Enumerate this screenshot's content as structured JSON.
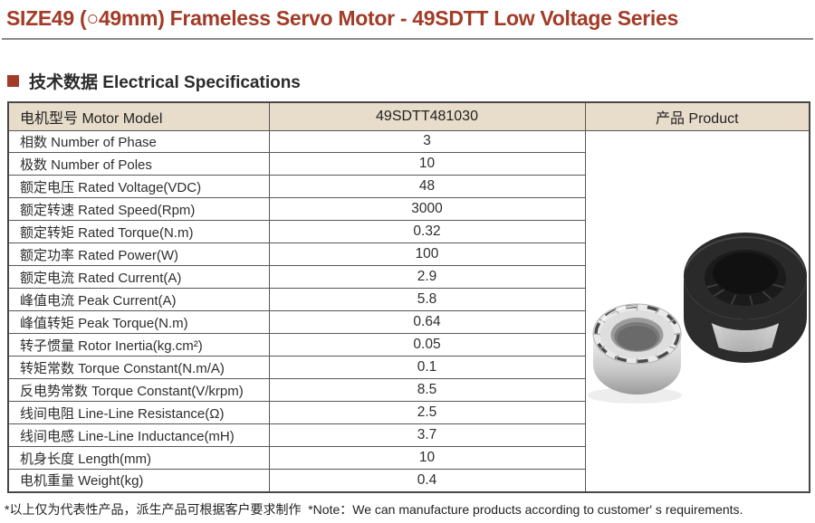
{
  "page": {
    "title": "SIZE49 (○49mm) Frameless Servo Motor - 49SDTT Low Voltage Series",
    "section_heading": "技术数据 Electrical Specifications",
    "footnote": "*以上仅为代表性产品，派生产品可根据客户要求制作  *Note：We can manufacture products according to customer' s requirements."
  },
  "colors": {
    "accent_red": "#a23b27",
    "table_header_bg": "#e8dcca",
    "table_border": "#585858",
    "rule_gray": "#8a8a8a",
    "stator_dark": "#2a2a2a",
    "rotor_silver": "#e9e9e9"
  },
  "spec_table": {
    "columns": {
      "model_label": "电机型号 Motor Model",
      "model_value": "49SDTT481030",
      "product_label": "产品 Product"
    },
    "rows": [
      {
        "label": "相数 Number of Phase",
        "value": "3"
      },
      {
        "label": "极数 Number of Poles",
        "value": "10"
      },
      {
        "label": "额定电压 Rated Voltage(VDC)",
        "value": "48"
      },
      {
        "label": "额定转速 Rated Speed(Rpm)",
        "value": "3000"
      },
      {
        "label": "额定转矩 Rated Torque(N.m)",
        "value": "0.32"
      },
      {
        "label": "额定功率 Rated Power(W)",
        "value": "100"
      },
      {
        "label": "额定电流 Rated Current(A)",
        "value": "2.9"
      },
      {
        "label": "峰值电流 Peak Current(A)",
        "value": "5.8"
      },
      {
        "label": "峰值转矩 Peak Torque(N.m)",
        "value": "0.64"
      },
      {
        "label": "转子惯量 Rotor Inertia(kg.cm²)",
        "value": "0.05"
      },
      {
        "label": "转矩常数 Torque Constant(N.m/A)",
        "value": "0.1"
      },
      {
        "label": "反电势常数 Torque Constant(V/krpm)",
        "value": "8.5"
      },
      {
        "label": "线间电阻 Line-Line Resistance(Ω)",
        "value": "2.5"
      },
      {
        "label": "线间电感 Line-Line Inductance(mH)",
        "value": "3.7"
      },
      {
        "label": "机身长度 Length(mm)",
        "value": "10"
      },
      {
        "label": "电机重量 Weight(kg)",
        "value": "0.4"
      }
    ],
    "product_photo_parts": [
      "rotor-ring",
      "stator-ring"
    ]
  }
}
